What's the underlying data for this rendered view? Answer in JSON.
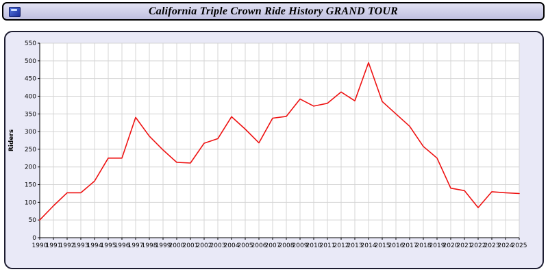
{
  "header": {
    "title": "California Triple Crown Ride History GRAND TOUR",
    "icon": "window-logo-icon"
  },
  "chart_data": {
    "type": "line",
    "title": "California Triple Crown Ride History GRAND TOUR",
    "xlabel": "",
    "ylabel": "Riders",
    "ylim": [
      0,
      550
    ],
    "ytick_step": 50,
    "grid": true,
    "legend_position": "none",
    "plot_background": "#ffffff",
    "panel_background": "#e9e9f7",
    "grid_color": "#d4d4d4",
    "x": [
      1990,
      1991,
      1992,
      1993,
      1994,
      1995,
      1996,
      1997,
      1998,
      1999,
      2000,
      2001,
      2002,
      2003,
      2004,
      2005,
      2006,
      2007,
      2008,
      2009,
      2010,
      2011,
      2012,
      2013,
      2014,
      2015,
      2016,
      2017,
      2018,
      2019,
      2020,
      2021,
      2022,
      2023,
      2024,
      2025
    ],
    "series": [
      {
        "name": "Riders",
        "color": "#ee1111",
        "values": [
          50,
          90,
          127,
          127,
          160,
          225,
          225,
          340,
          287,
          248,
          213,
          211,
          267,
          280,
          342,
          307,
          268,
          338,
          343,
          392,
          372,
          380,
          412,
          387,
          495,
          385,
          350,
          315,
          258,
          225,
          140,
          133,
          85,
          130,
          127,
          125
        ]
      }
    ]
  }
}
